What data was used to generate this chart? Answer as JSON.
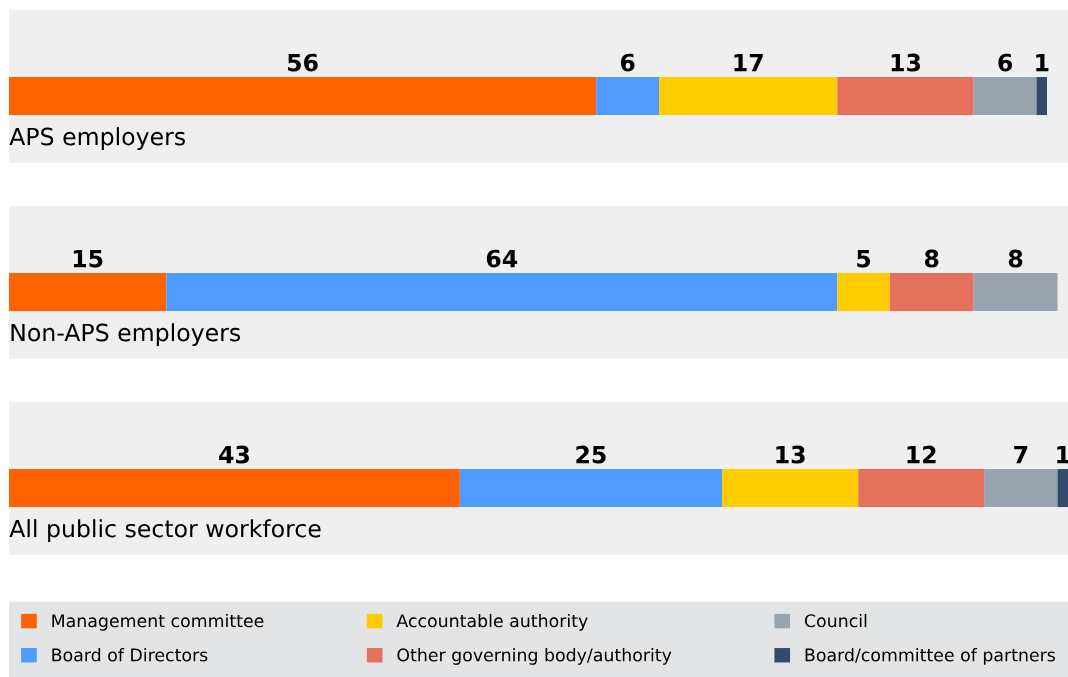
{
  "chart_data": {
    "type": "bar",
    "orientation": "horizontal",
    "stacked": true,
    "data_labels": true,
    "tick_labels": false,
    "legend": "bottom",
    "categories": [
      "APS employers",
      "Non-APS employers",
      "All public sector workforce"
    ],
    "series": [
      {
        "name": "Management committee",
        "color": "#ff6200",
        "values": [
          56,
          15,
          43
        ]
      },
      {
        "name": "Board of Directors",
        "color": "#4f9bff",
        "values": [
          6,
          64,
          25
        ]
      },
      {
        "name": "Accountable authority",
        "color": "#ffcc00",
        "values": [
          17,
          5,
          13
        ]
      },
      {
        "name": "Other governing body/authority",
        "color": "#e5705c",
        "values": [
          13,
          8,
          12
        ]
      },
      {
        "name": "Council",
        "color": "#98a3b0",
        "values": [
          6,
          8,
          7
        ]
      },
      {
        "name": "Board/committee of partners",
        "color": "#334a6a",
        "values": [
          1,
          null,
          1
        ]
      }
    ]
  }
}
